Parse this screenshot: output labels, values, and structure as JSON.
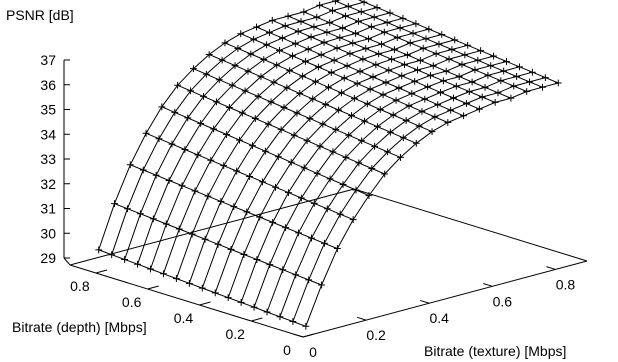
{
  "chart_data": {
    "type": "surface3d",
    "title": "",
    "zlabel": "PSNR [dB]",
    "xlabel": "Bitrate (texture) [Mbps]",
    "ylabel": "Bitrate (depth) [Mbps]",
    "xlim": [
      0,
      0.9
    ],
    "ylim": [
      0,
      0.9
    ],
    "zlim": [
      29,
      37
    ],
    "x_ticks": [
      0,
      0.2,
      0.4,
      0.6,
      0.8
    ],
    "y_ticks": [
      0,
      0.2,
      0.4,
      0.6,
      0.8
    ],
    "z_ticks": [
      29,
      30,
      31,
      32,
      33,
      34,
      35,
      36,
      37
    ],
    "x_tick_labels": [
      "0",
      "0.2",
      "0.4",
      "0.6",
      "0.8"
    ],
    "y_tick_labels": [
      "0",
      "0.2",
      "0.4",
      "0.6",
      "0.8"
    ],
    "z_tick_labels": [
      "29",
      "30",
      "31",
      "32",
      "33",
      "34",
      "35",
      "36",
      "37"
    ],
    "texture_bitrate": [
      0.05,
      0.1,
      0.15,
      0.2,
      0.25,
      0.3,
      0.35,
      0.4,
      0.45,
      0.5,
      0.55,
      0.6,
      0.65,
      0.7,
      0.75,
      0.8,
      0.85
    ],
    "depth_bitrate": [
      0.05,
      0.1,
      0.15,
      0.2,
      0.25,
      0.3,
      0.35,
      0.4,
      0.45,
      0.5,
      0.55,
      0.6,
      0.65,
      0.7,
      0.75,
      0.8,
      0.85
    ],
    "psnr_at_depth_min": [
      29.1,
      30.6,
      31.9,
      32.9,
      33.7,
      34.4,
      34.9,
      35.3,
      35.6,
      35.8,
      35.9,
      36.0,
      36.1,
      36.1,
      36.2,
      36.2,
      36.2
    ],
    "psnr_at_depth_max": [
      29.6,
      31.3,
      32.7,
      33.8,
      34.7,
      35.4,
      35.9,
      36.3,
      36.6,
      36.8,
      36.9,
      37.0,
      37.0,
      37.0,
      37.1,
      37.1,
      37.1
    ],
    "marker": "plus",
    "grid": false
  }
}
